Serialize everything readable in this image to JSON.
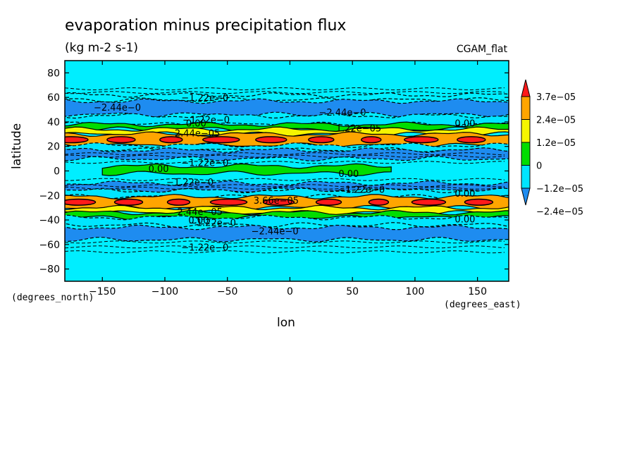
{
  "chart_data": {
    "type": "heatmap",
    "title": "evaporation minus precipitation flux",
    "subtitle": "(kg m-2 s-1)",
    "corner_label": "CGAM_flat",
    "xlabel": "lon",
    "ylabel": "latitude",
    "x_units_label": "(degrees_east)",
    "y_units_label": "(degrees_north)",
    "xlim": [
      -180,
      175
    ],
    "ylim": [
      -90,
      90
    ],
    "x_ticks": [
      -150,
      -100,
      -50,
      0,
      50,
      100,
      150
    ],
    "x_tick_labels": [
      "−150",
      "−100",
      "−50",
      "0",
      "50",
      "100",
      "150"
    ],
    "y_ticks": [
      -80,
      -60,
      -40,
      -20,
      0,
      20,
      40,
      60,
      80
    ],
    "y_tick_labels": [
      "−80",
      "−60",
      "−40",
      "−20",
      "0",
      "20",
      "40",
      "60",
      "80"
    ],
    "colorbar": {
      "levels": [
        -2.4e-05,
        -1.2e-05,
        0,
        1.2e-05,
        2.4e-05,
        3.7e-05
      ],
      "labels": [
        "−2.4e−05",
        "−1.2e−05",
        "0",
        "1.2e−05",
        "2.4e−05",
        "3.7e−05"
      ],
      "colors": [
        "#1e8cf0",
        "#00e5ff",
        "#00dd00",
        "#f5f500",
        "#ffa500",
        "#ff1a1a"
      ],
      "extend": "both"
    },
    "background_color": "#00eeff",
    "bands": [
      {
        "lat_min": 58,
        "lat_max": 62,
        "color": "#00eeff",
        "dashed": true
      },
      {
        "lat_min": 46,
        "lat_max": 57,
        "color": "#1e8cf0"
      },
      {
        "lat_min": 38,
        "lat_max": 45,
        "color": "#00e5ff"
      },
      {
        "lat_min": 34,
        "lat_max": 38,
        "color": "#00dd00"
      },
      {
        "lat_min": 30,
        "lat_max": 34,
        "color": "#f5f500"
      },
      {
        "lat_min": 21,
        "lat_max": 30,
        "color": "#ffa500"
      },
      {
        "lat_min": 23,
        "lat_max": 28,
        "color": "#ff1a1a",
        "patches": true
      },
      {
        "lat_min": 17,
        "lat_max": 21,
        "color": "#00e5ff"
      },
      {
        "lat_min": 10,
        "lat_max": 17,
        "color": "#1e8cf0"
      },
      {
        "lat_min": -2,
        "lat_max": 4,
        "color": "#00dd00",
        "lon_min": -150,
        "lon_max": 85
      },
      {
        "lat_min": -16,
        "lat_max": -10,
        "color": "#1e8cf0"
      },
      {
        "lat_min": -21,
        "lat_max": -16,
        "color": "#00e5ff"
      },
      {
        "lat_min": -30,
        "lat_max": -21,
        "color": "#ffa500"
      },
      {
        "lat_min": -28,
        "lat_max": -23,
        "color": "#ff1a1a",
        "patches": true
      },
      {
        "lat_min": -34,
        "lat_max": -30,
        "color": "#f5f500"
      },
      {
        "lat_min": -38,
        "lat_max": -34,
        "color": "#00dd00"
      },
      {
        "lat_min": -44,
        "lat_max": -38,
        "color": "#00e5ff"
      },
      {
        "lat_min": -56,
        "lat_max": -46,
        "color": "#1e8cf0"
      }
    ],
    "contour_labels": [
      {
        "text": "−2.44e−0",
        "lon": -138,
        "lat": 52
      },
      {
        "text": "−1.22e−0",
        "lon": -68,
        "lat": 60
      },
      {
        "text": "−2.44e−0",
        "lon": 42,
        "lat": 48
      },
      {
        "text": "−1.22e−0",
        "lon": -67,
        "lat": 42
      },
      {
        "text": "0.00",
        "lon": -75,
        "lat": 39
      },
      {
        "text": "0.00",
        "lon": 140,
        "lat": 39
      },
      {
        "text": "1.22e−05",
        "lon": 55,
        "lat": 35
      },
      {
        "text": "2.44e−05",
        "lon": -74,
        "lat": 31
      },
      {
        "text": "−1.22e−0",
        "lon": -68,
        "lat": 7
      },
      {
        "text": "0.00",
        "lon": -105,
        "lat": 2
      },
      {
        "text": "0.00",
        "lon": 47,
        "lat": -2
      },
      {
        "text": "−1.22e−0",
        "lon": -80,
        "lat": -9
      },
      {
        "text": "−1.22e−0",
        "lon": 57,
        "lat": -15
      },
      {
        "text": "0.00",
        "lon": 140,
        "lat": -18
      },
      {
        "text": "3.66e−05",
        "lon": -11,
        "lat": -24
      },
      {
        "text": "2.44e−05",
        "lon": -72,
        "lat": -33
      },
      {
        "text": "0.00",
        "lon": -73,
        "lat": -40
      },
      {
        "text": "−1.22e−0",
        "lon": -62,
        "lat": -42
      },
      {
        "text": "0.00",
        "lon": 140,
        "lat": -39
      },
      {
        "text": "−2.44e−0",
        "lon": -12,
        "lat": -49
      },
      {
        "text": "−1.22e−0",
        "lon": -68,
        "lat": -62
      }
    ]
  }
}
